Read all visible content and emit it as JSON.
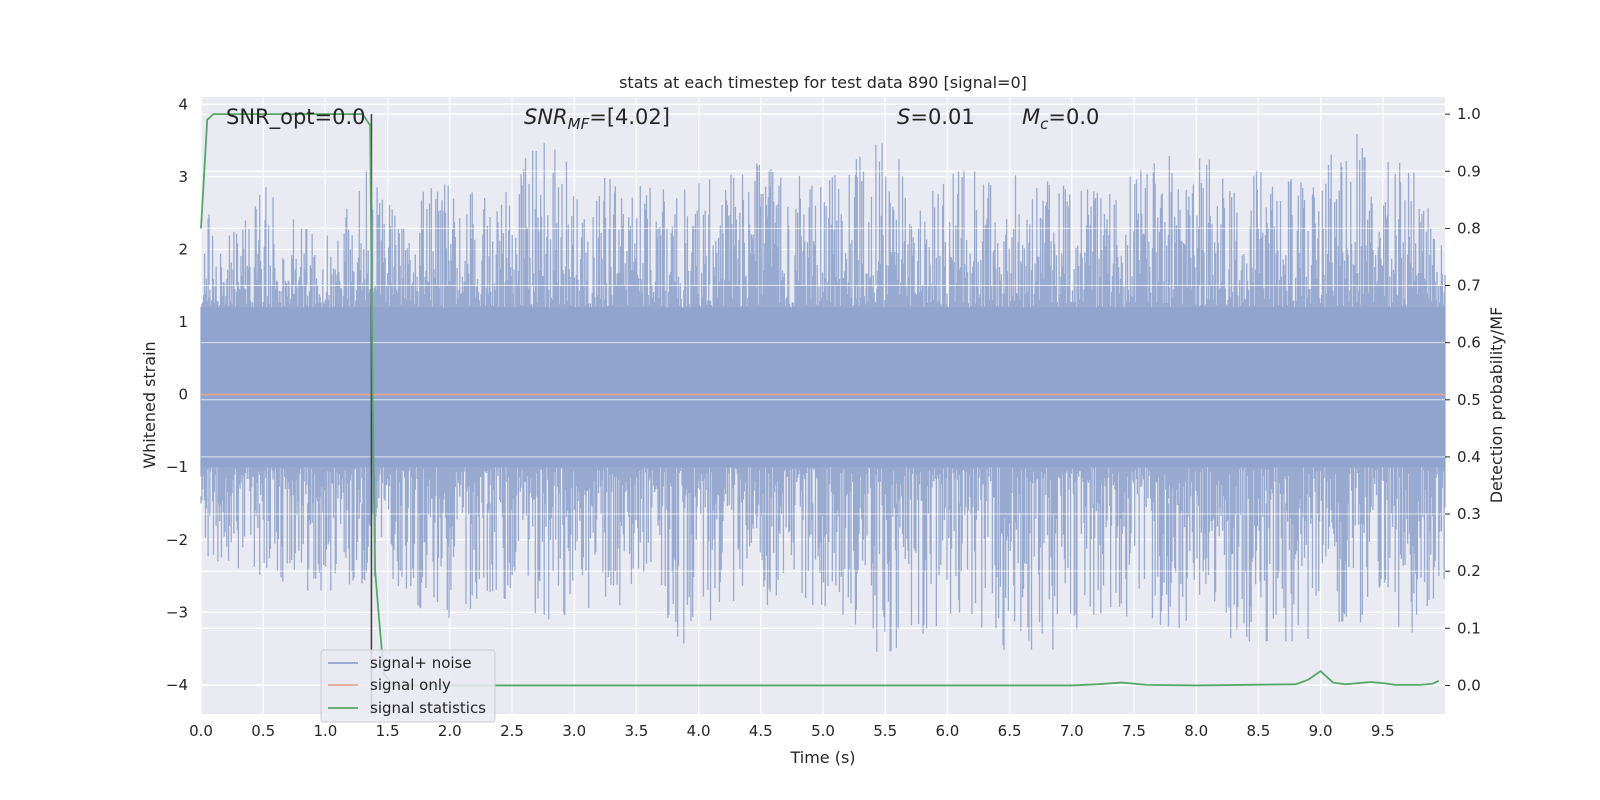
{
  "chart_data": {
    "type": "line",
    "title": "stats at each timestep for test data 890 [signal=0]",
    "xlabel": "Time (s)",
    "ylabel_left": "Whitened strain",
    "ylabel_right": "Detection probability/MF",
    "xlim": [
      0,
      10
    ],
    "ylim_left": [
      -4.4,
      4.1
    ],
    "ylim_right": [
      -0.05,
      1.03
    ],
    "x_ticks": [
      "0.0",
      "0.5",
      "1.0",
      "1.5",
      "2.0",
      "2.5",
      "3.0",
      "3.5",
      "4.0",
      "4.5",
      "5.0",
      "5.5",
      "6.0",
      "6.5",
      "7.0",
      "7.5",
      "8.0",
      "8.5",
      "9.0",
      "9.5"
    ],
    "y_left_ticks": [
      "4",
      "3",
      "2",
      "1",
      "0",
      "−1",
      "−2",
      "−3",
      "−4"
    ],
    "y_right_ticks": [
      "1.0",
      "0.9",
      "0.8",
      "0.7",
      "0.6",
      "0.5",
      "0.4",
      "0.3",
      "0.2",
      "0.1",
      "0.0"
    ],
    "grid": true,
    "legend_position": "lower-left",
    "annotations": {
      "snr_opt": "SNR_opt=0.0",
      "snr_mf_base": "SNR",
      "snr_mf_sub": "MF",
      "snr_mf_value": "=[4.02]",
      "s_base": "S",
      "s_value": "=0.01",
      "mc_base": "M",
      "mc_sub": "c",
      "mc_value": "=0.0"
    },
    "vertical_marker_x": 1.37,
    "series": [
      {
        "name": "signal+ noise",
        "color": "#8fa3cc",
        "axis": "left",
        "description": "whitened strain noise, amplitude envelope",
        "envelope": {
          "x": [
            0.0,
            0.05,
            0.3,
            0.5,
            0.8,
            1.1,
            1.3,
            1.5,
            1.98,
            2.3,
            2.8,
            3.2,
            3.8,
            4.5,
            5.0,
            5.47,
            5.8,
            6.1,
            6.65,
            7.2,
            7.8,
            8.3,
            8.9,
            9.2,
            9.8,
            10.0
          ],
          "upper": [
            2.1,
            2.5,
            2.2,
            2.9,
            2.3,
            2.2,
            3.2,
            2.6,
            3.0,
            2.7,
            3.6,
            3.0,
            2.8,
            3.2,
            2.9,
            3.5,
            2.9,
            3.1,
            3.0,
            2.8,
            3.3,
            3.2,
            2.9,
            3.7,
            3.0,
            1.9
          ],
          "lower": [
            -1.4,
            -2.6,
            -2.4,
            -2.5,
            -2.7,
            -2.7,
            -2.6,
            -2.5,
            -3.3,
            -2.7,
            -3.1,
            -2.9,
            -3.5,
            -2.9,
            -2.9,
            -3.6,
            -3.3,
            -3.0,
            -3.8,
            -3.0,
            -3.2,
            -3.4,
            -3.4,
            -3.1,
            -3.3,
            -2.6
          ]
        }
      },
      {
        "name": "signal only",
        "color": "#e8a58c",
        "axis": "left",
        "x": [
          0.0,
          10.0
        ],
        "values": [
          0.0,
          0.0
        ]
      },
      {
        "name": "signal statistics",
        "color": "#55a868",
        "axis": "right",
        "x": [
          0.0,
          0.05,
          0.1,
          0.2,
          0.5,
          1.0,
          1.3,
          1.36,
          1.38,
          1.4,
          1.43,
          1.47,
          1.55,
          2.0,
          3.0,
          4.0,
          5.0,
          6.0,
          7.0,
          7.2,
          7.4,
          7.6,
          8.0,
          8.8,
          8.9,
          9.0,
          9.1,
          9.2,
          9.4,
          9.5,
          9.6,
          9.8,
          9.9,
          9.95
        ],
        "values": [
          0.8,
          0.99,
          1.0,
          1.0,
          1.0,
          1.0,
          1.0,
          0.98,
          0.5,
          0.2,
          0.12,
          0.02,
          0.0,
          0.0,
          0.0,
          0.0,
          0.0,
          0.0,
          0.0,
          0.002,
          0.005,
          0.001,
          0.0,
          0.002,
          0.01,
          0.025,
          0.005,
          0.002,
          0.006,
          0.004,
          0.001,
          0.001,
          0.003,
          0.008
        ]
      }
    ]
  }
}
